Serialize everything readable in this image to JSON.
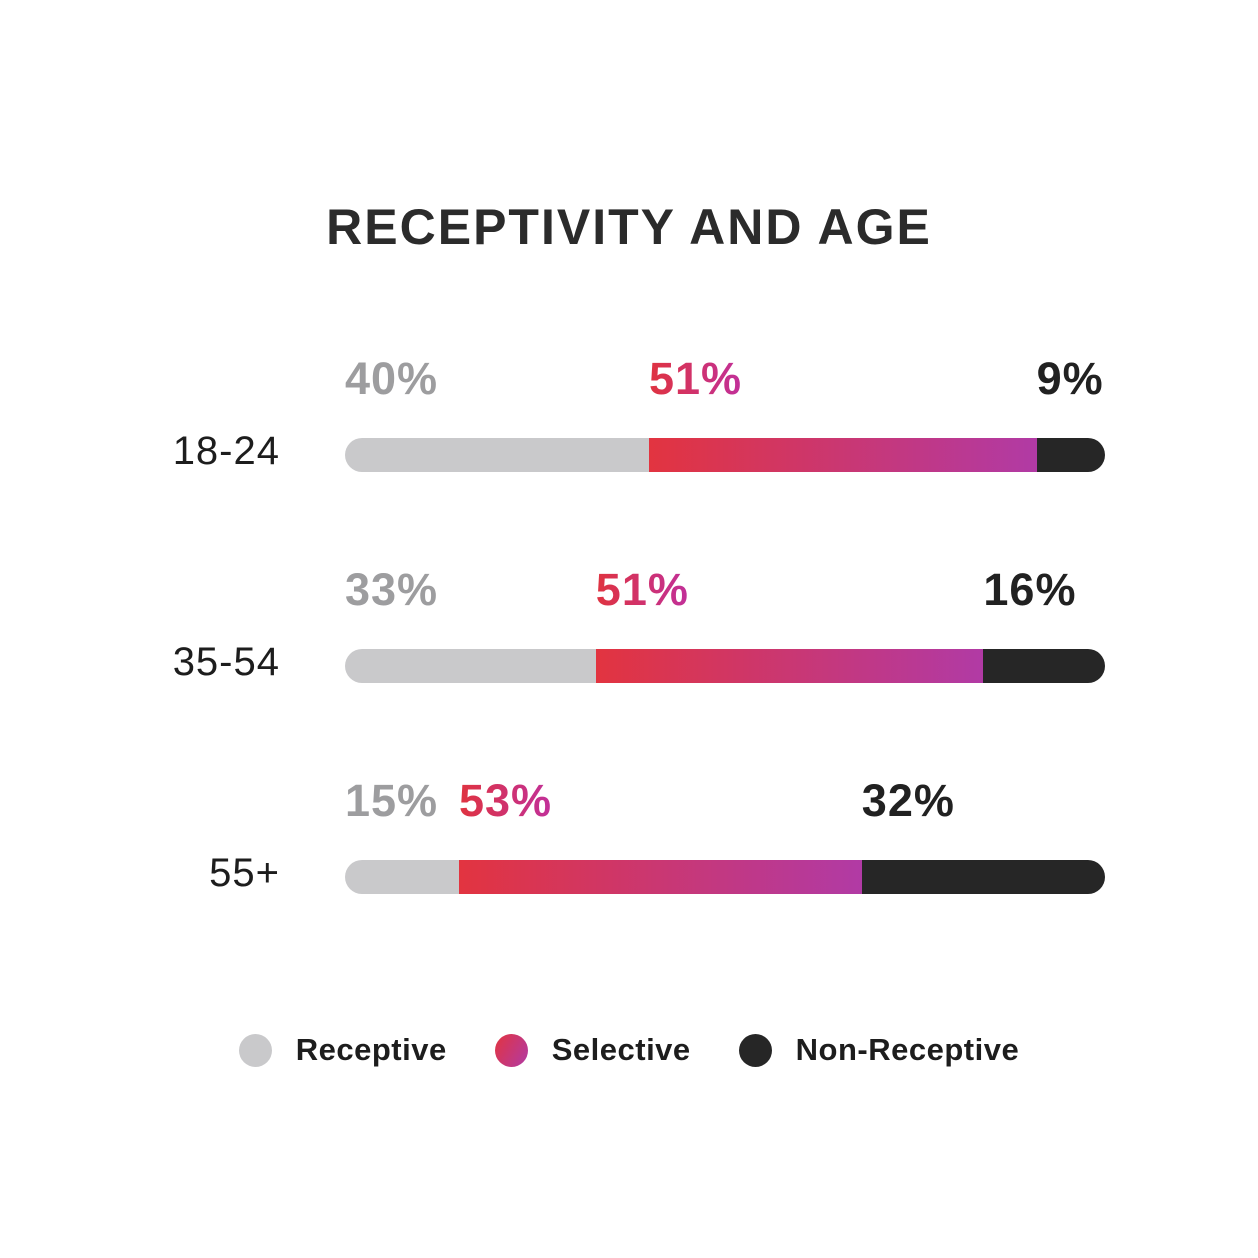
{
  "page": {
    "background": "#ffffff"
  },
  "title": "RECEPTIVITY AND AGE",
  "chart_data": {
    "type": "bar",
    "orientation": "horizontal",
    "stacked": true,
    "unit": "percent",
    "title": "RECEPTIVITY AND AGE",
    "categories": [
      "18-24",
      "35-54",
      "55+"
    ],
    "series": [
      {
        "name": "Receptive",
        "values": [
          40,
          33,
          15
        ]
      },
      {
        "name": "Selective",
        "values": [
          51,
          51,
          53
        ]
      },
      {
        "name": "Non-Receptive",
        "values": [
          9,
          16,
          32
        ]
      }
    ],
    "value_labels": [
      [
        "40%",
        "51%",
        "9%"
      ],
      [
        "33%",
        "51%",
        "16%"
      ],
      [
        "15%",
        "53%",
        "32%"
      ]
    ],
    "legend": [
      "Receptive",
      "Selective",
      "Non-Receptive"
    ],
    "legend_position": "bottom",
    "xlim": [
      0,
      100
    ],
    "grid": false,
    "colors": {
      "receptive": "#c9c9cb",
      "selective_start": "#e23440",
      "selective_end": "#b13aa5",
      "non_receptive": "#262626",
      "receptive_label": "#9d9d9f",
      "selective_label_start": "#df3340",
      "selective_label_end": "#c1309a",
      "non_receptive_label": "#212121",
      "title_text": "#2b2b2b",
      "category_text": "#1d1d1d"
    }
  }
}
